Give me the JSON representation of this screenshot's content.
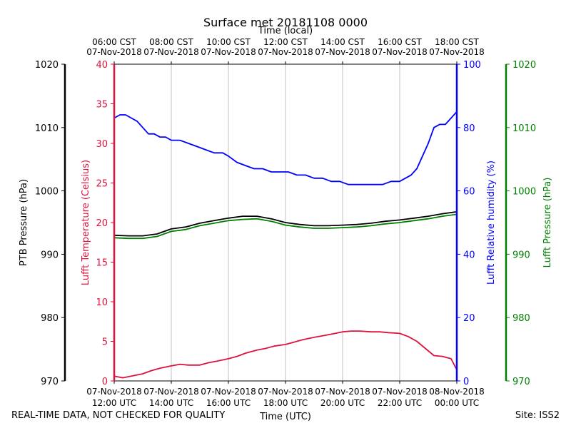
{
  "chart_data": {
    "type": "line",
    "title": "Surface met 20181108 0000",
    "top_axis_label": "Time (local)",
    "xlabel": "Time (UTC)",
    "top_tick_labels": [
      {
        "time": "06:00 CST",
        "date": "07-Nov-2018"
      },
      {
        "time": "08:00 CST",
        "date": "07-Nov-2018"
      },
      {
        "time": "10:00 CST",
        "date": "07-Nov-2018"
      },
      {
        "time": "12:00 CST",
        "date": "07-Nov-2018"
      },
      {
        "time": "14:00 CST",
        "date": "07-Nov-2018"
      },
      {
        "time": "16:00 CST",
        "date": "07-Nov-2018"
      },
      {
        "time": "18:00 CST",
        "date": "07-Nov-2018"
      }
    ],
    "bottom_tick_labels": [
      {
        "date": "07-Nov-2018",
        "time": "12:00 UTC"
      },
      {
        "date": "07-Nov-2018",
        "time": "14:00 UTC"
      },
      {
        "date": "07-Nov-2018",
        "time": "16:00 UTC"
      },
      {
        "date": "07-Nov-2018",
        "time": "18:00 UTC"
      },
      {
        "date": "07-Nov-2018",
        "time": "20:00 UTC"
      },
      {
        "date": "07-Nov-2018",
        "time": "22:00 UTC"
      },
      {
        "date": "08-Nov-2018",
        "time": "00:00 UTC"
      }
    ],
    "xlim": [
      0,
      12
    ],
    "grid": "vertical",
    "axes": {
      "ptb_pressure": {
        "label": "PTB Pressure (hPa)",
        "range": [
          970,
          1020
        ],
        "ticks": [
          970,
          980,
          990,
          1000,
          1010,
          1020
        ],
        "color": "#000000"
      },
      "temperature": {
        "label": "Lufft Temperature (Celsius)",
        "range": [
          0,
          40
        ],
        "ticks": [
          0,
          5,
          10,
          15,
          20,
          25,
          30,
          35,
          40
        ],
        "color": "#dc143c"
      },
      "humidity": {
        "label": "Lufft Relative humidity (%)",
        "range": [
          0,
          100
        ],
        "ticks": [
          0,
          20,
          40,
          60,
          80,
          100
        ],
        "color": "#0000ff"
      },
      "lufft_pressure": {
        "label": "Lufft Pressure (hPa)",
        "range": [
          970,
          1020
        ],
        "ticks": [
          970,
          980,
          990,
          1000,
          1010,
          1020
        ],
        "color": "#008000"
      }
    },
    "series": [
      {
        "name": "Lufft Relative humidity",
        "axis": "humidity",
        "color": "#0000ff",
        "x": [
          0,
          0.2,
          0.4,
          0.6,
          0.8,
          1.0,
          1.2,
          1.4,
          1.6,
          1.8,
          2.0,
          2.3,
          2.6,
          2.9,
          3.2,
          3.5,
          3.8,
          4.0,
          4.3,
          4.6,
          4.9,
          5.2,
          5.5,
          5.8,
          6.1,
          6.4,
          6.7,
          7.0,
          7.3,
          7.6,
          7.9,
          8.2,
          8.5,
          8.8,
          9.1,
          9.4,
          9.7,
          10.0,
          10.2,
          10.4,
          10.6,
          10.8,
          11.0,
          11.2,
          11.4,
          11.6,
          11.8,
          12.0
        ],
        "y": [
          83,
          84,
          84,
          83,
          82,
          80,
          78,
          78,
          77,
          77,
          76,
          76,
          75,
          74,
          73,
          72,
          72,
          71,
          69,
          68,
          67,
          67,
          66,
          66,
          66,
          65,
          65,
          64,
          64,
          63,
          63,
          62,
          62,
          62,
          62,
          62,
          63,
          63,
          64,
          65,
          67,
          71,
          75,
          80,
          81,
          81,
          83,
          85
        ]
      },
      {
        "name": "PTB Pressure",
        "axis": "ptb_pressure",
        "color": "#000000",
        "x": [
          0,
          0.5,
          1.0,
          1.5,
          2.0,
          2.5,
          3.0,
          3.5,
          4.0,
          4.5,
          5.0,
          5.5,
          6.0,
          6.5,
          7.0,
          7.5,
          8.0,
          8.5,
          9.0,
          9.5,
          10.0,
          10.5,
          11.0,
          11.5,
          12.0
        ],
        "y": [
          993.0,
          992.9,
          992.9,
          993.2,
          994.0,
          994.3,
          994.9,
          995.3,
          995.7,
          996.0,
          996.0,
          995.6,
          995.0,
          994.7,
          994.5,
          994.5,
          994.6,
          994.7,
          994.9,
          995.2,
          995.4,
          995.7,
          996.0,
          996.4,
          996.7
        ]
      },
      {
        "name": "Lufft Pressure",
        "axis": "lufft_pressure",
        "color": "#008000",
        "x": [
          0,
          0.5,
          1.0,
          1.5,
          2.0,
          2.5,
          3.0,
          3.5,
          4.0,
          4.5,
          5.0,
          5.5,
          6.0,
          6.5,
          7.0,
          7.5,
          8.0,
          8.5,
          9.0,
          9.5,
          10.0,
          10.5,
          11.0,
          11.5,
          12.0
        ],
        "y": [
          992.6,
          992.5,
          992.5,
          992.8,
          993.6,
          993.9,
          994.5,
          994.9,
          995.3,
          995.5,
          995.6,
          995.2,
          994.6,
          994.3,
          994.1,
          994.1,
          994.2,
          994.3,
          994.5,
          994.8,
          995.0,
          995.3,
          995.6,
          996.0,
          996.3
        ]
      },
      {
        "name": "Lufft Temperature",
        "axis": "temperature",
        "color": "#dc143c",
        "x": [
          0,
          0.3,
          0.6,
          1.0,
          1.3,
          1.6,
          2.0,
          2.3,
          2.6,
          3.0,
          3.3,
          3.6,
          4.0,
          4.3,
          4.6,
          5.0,
          5.3,
          5.6,
          6.0,
          6.3,
          6.6,
          7.0,
          7.3,
          7.6,
          8.0,
          8.3,
          8.6,
          9.0,
          9.3,
          9.6,
          10.0,
          10.3,
          10.6,
          10.9,
          11.2,
          11.5,
          11.8,
          12.0
        ],
        "y": [
          0.6,
          0.4,
          0.6,
          0.9,
          1.3,
          1.6,
          1.9,
          2.1,
          2.0,
          2.0,
          2.3,
          2.5,
          2.8,
          3.1,
          3.5,
          3.9,
          4.1,
          4.4,
          4.6,
          4.9,
          5.2,
          5.5,
          5.7,
          5.9,
          6.2,
          6.3,
          6.3,
          6.2,
          6.2,
          6.1,
          6.0,
          5.6,
          5.0,
          4.1,
          3.2,
          3.1,
          2.8,
          1.4
        ]
      }
    ]
  },
  "footer": {
    "quality_note": "REAL-TIME DATA, NOT CHECKED FOR QUALITY",
    "site": "Site: ISS2"
  }
}
